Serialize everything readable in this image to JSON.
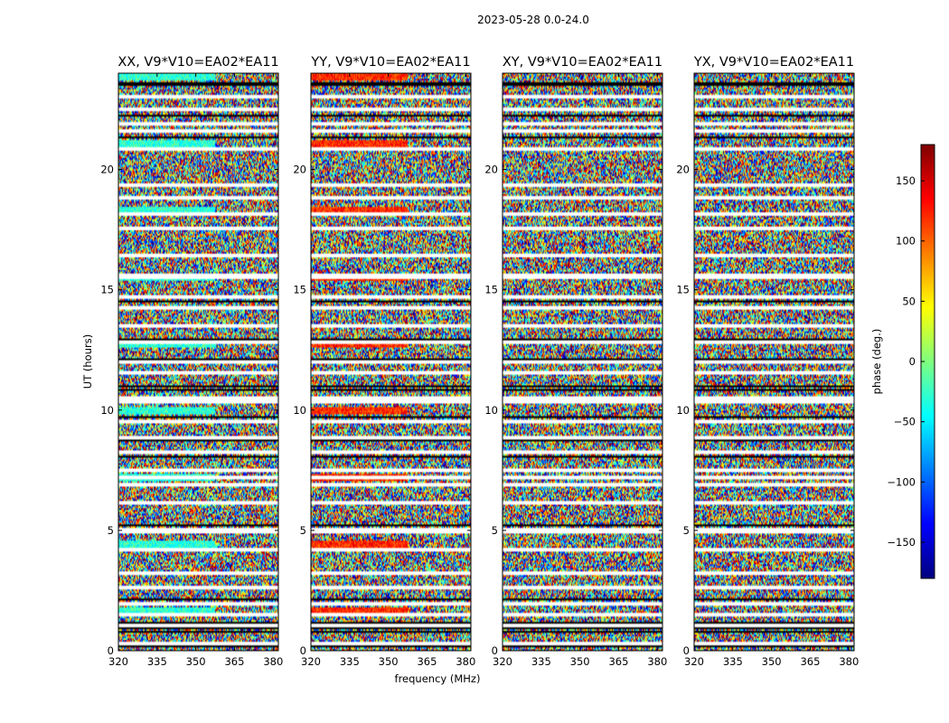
{
  "chart_data": {
    "type": "heatmap",
    "suptitle": "2023-05-28 0.0-24.0",
    "xlabel": "frequency (MHz)",
    "ylabel": "UT (hours)",
    "xlim": [
      320,
      382
    ],
    "ylim": [
      0,
      24
    ],
    "xticks": [
      "320",
      "335",
      "350",
      "365",
      "380"
    ],
    "xtick_values": [
      320,
      335,
      350,
      365,
      380
    ],
    "yticks": [
      "0",
      "5",
      "10",
      "15",
      "20"
    ],
    "ytick_values": [
      0,
      5,
      10,
      15,
      20
    ],
    "colorbar": {
      "label": "phase (deg.)",
      "colormap": "jet",
      "range": [
        -180,
        180
      ],
      "ticks": [
        "150",
        "100",
        "50",
        "0",
        "−50",
        "−100",
        "−150"
      ],
      "tick_values": [
        150,
        100,
        50,
        0,
        -50,
        -100,
        -150
      ],
      "colors": [
        "#00007f",
        "#0000ff",
        "#007fff",
        "#00ffff",
        "#7fff7f",
        "#ffff00",
        "#ff7f00",
        "#ff0000",
        "#7f0000"
      ]
    },
    "panels": [
      {
        "title": "XX, V9*V10=EA02*EA11",
        "phase_bias_deg": -30
      },
      {
        "title": "YY, V9*V10=EA02*EA11",
        "phase_bias_deg": 120
      },
      {
        "title": "XY, V9*V10=EA02*EA11",
        "phase_bias_deg": null
      },
      {
        "title": "YX, V9*V10=EA02*EA11",
        "phase_bias_deg": null
      }
    ],
    "flagged_ut_hours": [
      0.4,
      1.1,
      1.6,
      2.0,
      2.7,
      3.3,
      4.3,
      5.0,
      5.1,
      6.2,
      7.0,
      7.25,
      7.6,
      8.3,
      8.9,
      9.6,
      10.4,
      10.6,
      11.6,
      12.1,
      12.9,
      13.6,
      14.3,
      14.8,
      15.6,
      15.7,
      16.5,
      17.6,
      18.2,
      18.9,
      19.4,
      20.9,
      21.7,
      22.0,
      22.6,
      23.1
    ]
  }
}
